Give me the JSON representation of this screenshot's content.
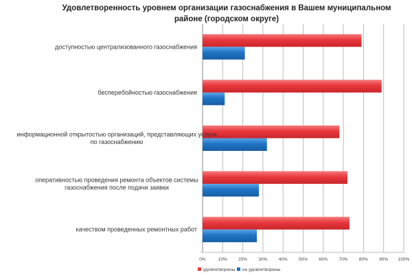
{
  "chart_data": {
    "type": "bar",
    "orientation": "horizontal",
    "title": "Удовлетворенность уровнем организации газоснабжения в Вашем муниципальном районе (городском округе)",
    "title_lines": [
      "Удовлетворенность уровнем организации газоснабжения в Вашем муниципальном",
      "районе (городском округе)"
    ],
    "categories": [
      [
        "доступностью  централизованного газоснабжения"
      ],
      [
        "бесперебойностью  газоснабжения"
      ],
      [
        "информационной открытостью организаций, представляющих услуги",
        "по газоснабжению"
      ],
      [
        "оперативностью проведения ремонта  объектов системы",
        "газоснабжения после подачи заявки"
      ],
      [
        "качеством проведенных ремонтных  работ"
      ]
    ],
    "series": [
      {
        "name": "удовлетворены",
        "color": "#e8383d",
        "values": [
          79,
          89,
          68,
          72,
          73
        ]
      },
      {
        "name": "не удовлетворены",
        "color": "#1f74c6",
        "values": [
          21,
          11,
          32,
          28,
          27
        ]
      }
    ],
    "xlim": [
      0,
      100
    ],
    "xticks": [
      "0%",
      "10%",
      "20%",
      "30%",
      "40%",
      "50%",
      "60%",
      "70%",
      "80%",
      "90%",
      "100%"
    ],
    "grid": true,
    "legend": "bottom"
  }
}
